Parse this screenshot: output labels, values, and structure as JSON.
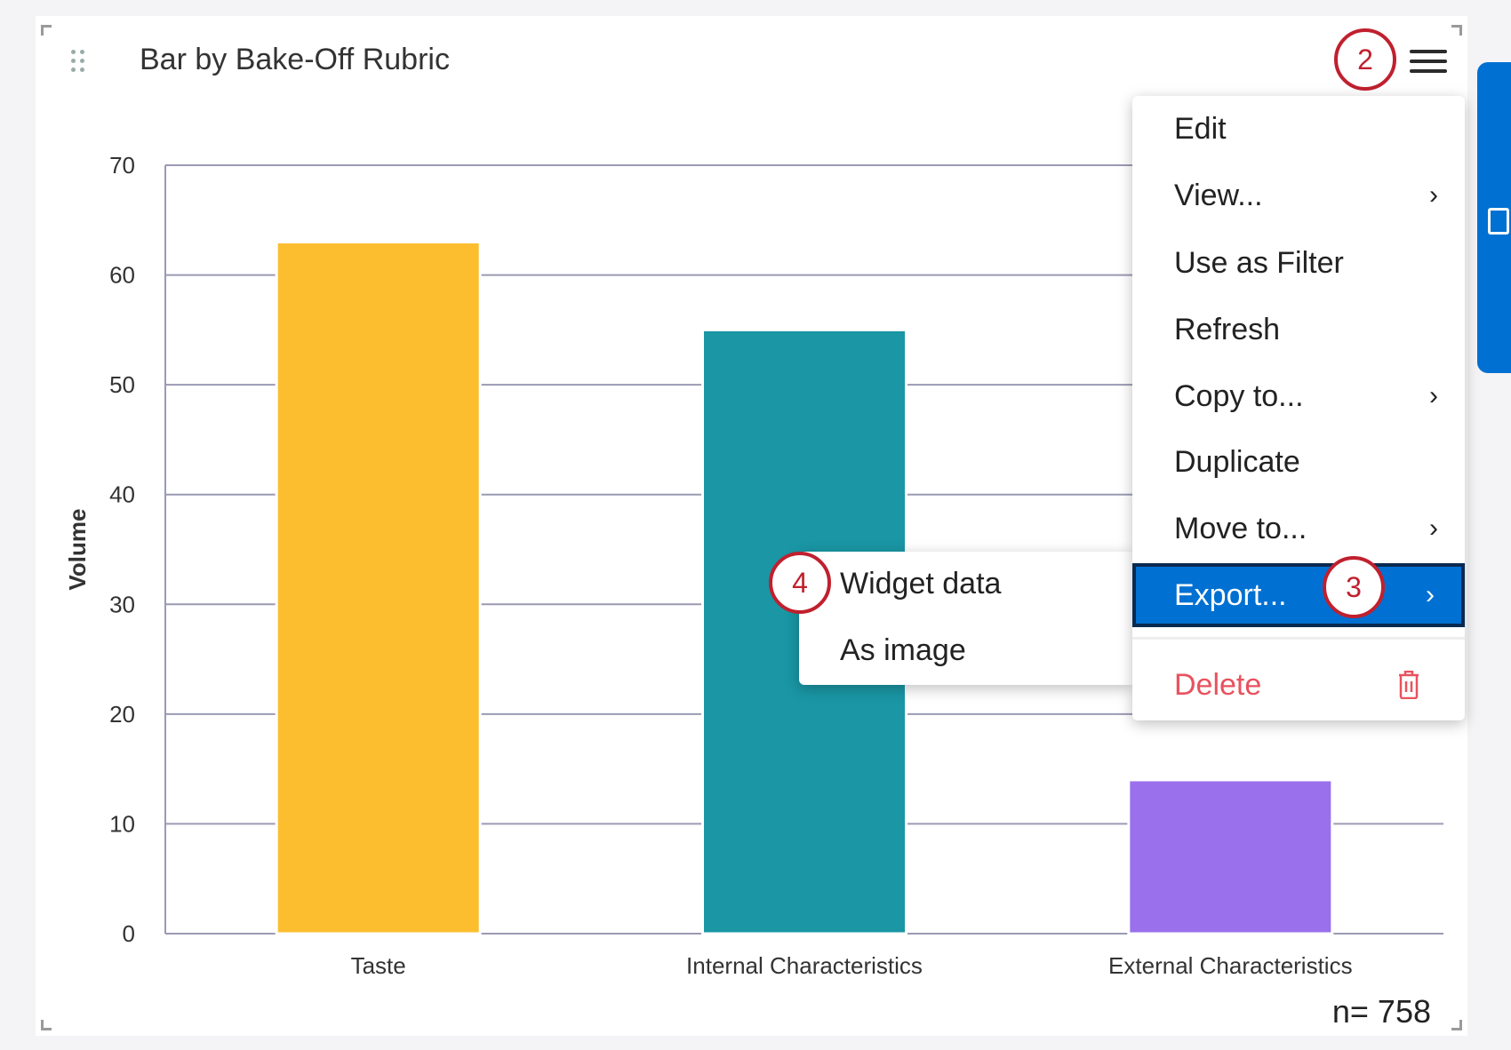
{
  "widget": {
    "title": "Bar by Bake-Off Rubric",
    "sample_size": "n= 758"
  },
  "menu": {
    "items": [
      {
        "label": "Edit",
        "submenu": false
      },
      {
        "label": "View...",
        "submenu": true
      },
      {
        "label": "Use as Filter",
        "submenu": false
      },
      {
        "label": "Refresh",
        "submenu": false
      },
      {
        "label": "Copy to...",
        "submenu": true
      },
      {
        "label": "Duplicate",
        "submenu": false
      },
      {
        "label": "Move to...",
        "submenu": true
      },
      {
        "label": "Export...",
        "submenu": true,
        "active": true
      }
    ],
    "delete_label": "Delete",
    "chevron": "›"
  },
  "submenu": {
    "items": [
      "Widget data",
      "As image"
    ]
  },
  "callouts": [
    "2",
    "3",
    "4"
  ],
  "colors": {
    "accent": "#0070d2",
    "callout": "#c0202e",
    "delete": "#e8525e"
  },
  "chart_data": {
    "type": "bar",
    "categories": [
      "Taste",
      "Internal Characteristics",
      "External Characteristics"
    ],
    "values": [
      63,
      55,
      14
    ],
    "colors": [
      "#fcbe2f",
      "#1a96a4",
      "#9a70ec"
    ],
    "ylabel": "Volume",
    "xlabel": "",
    "ylim": [
      0,
      70
    ],
    "yticks": [
      0,
      10,
      20,
      30,
      40,
      50,
      60,
      70
    ],
    "grid": true
  }
}
